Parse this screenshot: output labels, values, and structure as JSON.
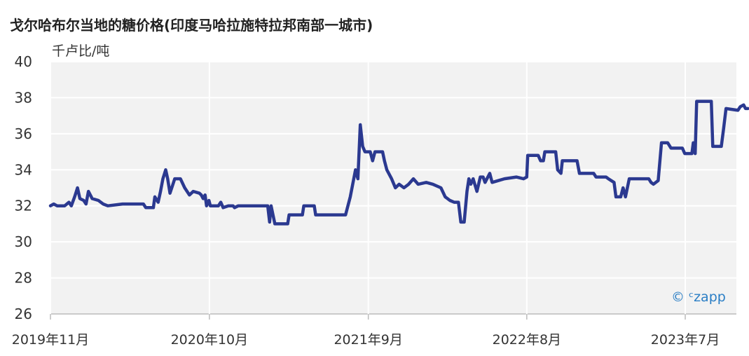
{
  "chart_data": {
    "type": "line",
    "title": "戈尔哈布尔当地的糖价格(印度马哈拉施特拉邦南部一城市)",
    "ylabel": "千卢比/吨",
    "ylim": [
      26,
      40
    ],
    "yticks": [
      26,
      28,
      30,
      32,
      34,
      36,
      38,
      40
    ],
    "xticks": [
      {
        "date": "2019-11-01",
        "label": "2019年11月"
      },
      {
        "date": "2020-10-01",
        "label": "2020年10月"
      },
      {
        "date": "2021-09-01",
        "label": "2021年9月"
      },
      {
        "date": "2022-08-01",
        "label": "2022年8月"
      },
      {
        "date": "2023-07-01",
        "label": "2023年7月"
      }
    ],
    "grid": true,
    "series_color": "#2b3990",
    "series": [
      {
        "points": [
          [
            "2019-11-01",
            32.0
          ],
          [
            "2019-11-08",
            32.1
          ],
          [
            "2019-11-15",
            32.0
          ],
          [
            "2019-12-01",
            32.0
          ],
          [
            "2019-12-10",
            32.2
          ],
          [
            "2019-12-15",
            32.0
          ],
          [
            "2019-12-22",
            32.5
          ],
          [
            "2019-12-28",
            33.0
          ],
          [
            "2020-01-02",
            32.4
          ],
          [
            "2020-01-10",
            32.3
          ],
          [
            "2020-01-15",
            32.1
          ],
          [
            "2020-01-20",
            32.8
          ],
          [
            "2020-01-28",
            32.4
          ],
          [
            "2020-02-10",
            32.3
          ],
          [
            "2020-02-20",
            32.1
          ],
          [
            "2020-03-01",
            32.0
          ],
          [
            "2020-04-01",
            32.1
          ],
          [
            "2020-05-15",
            32.1
          ],
          [
            "2020-05-20",
            31.9
          ],
          [
            "2020-06-05",
            31.9
          ],
          [
            "2020-06-08",
            32.5
          ],
          [
            "2020-06-15",
            32.2
          ],
          [
            "2020-06-20",
            32.8
          ],
          [
            "2020-06-25",
            33.5
          ],
          [
            "2020-07-01",
            34.0
          ],
          [
            "2020-07-05",
            33.5
          ],
          [
            "2020-07-10",
            32.7
          ],
          [
            "2020-07-15",
            33.1
          ],
          [
            "2020-07-20",
            33.5
          ],
          [
            "2020-08-01",
            33.5
          ],
          [
            "2020-08-10",
            33.0
          ],
          [
            "2020-08-15",
            32.8
          ],
          [
            "2020-08-20",
            32.6
          ],
          [
            "2020-08-28",
            32.8
          ],
          [
            "2020-09-10",
            32.7
          ],
          [
            "2020-09-14",
            32.6
          ],
          [
            "2020-09-18",
            32.4
          ],
          [
            "2020-09-22",
            32.6
          ],
          [
            "2020-09-25",
            32.0
          ],
          [
            "2020-09-30",
            32.3
          ],
          [
            "2020-10-03",
            32.0
          ],
          [
            "2020-10-20",
            32.0
          ],
          [
            "2020-10-25",
            32.2
          ],
          [
            "2020-10-30",
            31.9
          ],
          [
            "2020-11-10",
            32.0
          ],
          [
            "2020-11-20",
            32.0
          ],
          [
            "2020-11-23",
            31.9
          ],
          [
            "2020-12-01",
            32.0
          ],
          [
            "2021-01-15",
            32.0
          ],
          [
            "2021-02-01",
            32.0
          ],
          [
            "2021-02-05",
            31.1
          ],
          [
            "2021-02-08",
            32.0
          ],
          [
            "2021-02-12",
            31.5
          ],
          [
            "2021-02-16",
            31.0
          ],
          [
            "2021-03-15",
            31.0
          ],
          [
            "2021-03-18",
            31.5
          ],
          [
            "2021-04-15",
            31.5
          ],
          [
            "2021-04-18",
            32.0
          ],
          [
            "2021-05-10",
            32.0
          ],
          [
            "2021-05-13",
            31.5
          ],
          [
            "2021-07-15",
            31.5
          ],
          [
            "2021-07-25",
            32.5
          ],
          [
            "2021-08-05",
            34.0
          ],
          [
            "2021-08-10",
            33.5
          ],
          [
            "2021-08-15",
            36.5
          ],
          [
            "2021-08-20",
            35.3
          ],
          [
            "2021-08-25",
            35.0
          ],
          [
            "2021-09-05",
            35.0
          ],
          [
            "2021-09-10",
            34.5
          ],
          [
            "2021-09-15",
            35.0
          ],
          [
            "2021-10-01",
            35.0
          ],
          [
            "2021-10-05",
            34.5
          ],
          [
            "2021-10-10",
            34.0
          ],
          [
            "2021-10-20",
            33.5
          ],
          [
            "2021-10-28",
            33.0
          ],
          [
            "2021-11-05",
            33.2
          ],
          [
            "2021-11-15",
            33.0
          ],
          [
            "2021-11-25",
            33.2
          ],
          [
            "2021-12-05",
            33.5
          ],
          [
            "2021-12-15",
            33.2
          ],
          [
            "2022-01-01",
            33.3
          ],
          [
            "2022-01-15",
            33.2
          ],
          [
            "2022-02-01",
            33.0
          ],
          [
            "2022-02-10",
            32.5
          ],
          [
            "2022-02-20",
            32.3
          ],
          [
            "2022-03-01",
            32.2
          ],
          [
            "2022-03-10",
            32.2
          ],
          [
            "2022-03-15",
            31.1
          ],
          [
            "2022-03-22",
            31.1
          ],
          [
            "2022-03-28",
            32.8
          ],
          [
            "2022-04-01",
            33.5
          ],
          [
            "2022-04-05",
            33.2
          ],
          [
            "2022-04-10",
            33.5
          ],
          [
            "2022-04-18",
            32.8
          ],
          [
            "2022-04-25",
            33.6
          ],
          [
            "2022-05-01",
            33.6
          ],
          [
            "2022-05-05",
            33.3
          ],
          [
            "2022-05-15",
            33.8
          ],
          [
            "2022-05-20",
            33.3
          ],
          [
            "2022-06-15",
            33.5
          ],
          [
            "2022-07-10",
            33.6
          ],
          [
            "2022-07-25",
            33.5
          ],
          [
            "2022-08-01",
            33.6
          ],
          [
            "2022-08-03",
            34.8
          ],
          [
            "2022-08-25",
            34.8
          ],
          [
            "2022-08-30",
            34.5
          ],
          [
            "2022-09-05",
            34.5
          ],
          [
            "2022-09-08",
            35.0
          ],
          [
            "2022-10-01",
            35.0
          ],
          [
            "2022-10-05",
            34.0
          ],
          [
            "2022-10-12",
            33.8
          ],
          [
            "2022-10-15",
            34.5
          ],
          [
            "2022-11-15",
            34.5
          ],
          [
            "2022-11-20",
            33.8
          ],
          [
            "2022-12-20",
            33.8
          ],
          [
            "2022-12-25",
            33.6
          ],
          [
            "2023-01-15",
            33.6
          ],
          [
            "2023-01-20",
            33.5
          ],
          [
            "2023-02-01",
            33.3
          ],
          [
            "2023-02-05",
            32.5
          ],
          [
            "2023-02-15",
            32.5
          ],
          [
            "2023-02-20",
            33.0
          ],
          [
            "2023-02-25",
            32.5
          ],
          [
            "2023-03-05",
            33.5
          ],
          [
            "2023-04-15",
            33.5
          ],
          [
            "2023-04-20",
            33.3
          ],
          [
            "2023-04-25",
            33.2
          ],
          [
            "2023-05-05",
            33.4
          ],
          [
            "2023-05-12",
            35.5
          ],
          [
            "2023-05-25",
            35.5
          ],
          [
            "2023-06-01",
            35.2
          ],
          [
            "2023-06-25",
            35.2
          ],
          [
            "2023-06-30",
            34.9
          ],
          [
            "2023-07-15",
            34.9
          ],
          [
            "2023-07-18",
            35.5
          ],
          [
            "2023-07-22",
            34.9
          ],
          [
            "2023-07-25",
            37.8
          ],
          [
            "2023-08-25",
            37.8
          ],
          [
            "2023-08-28",
            35.3
          ],
          [
            "2023-09-15",
            35.3
          ],
          [
            "2023-09-20",
            36.3
          ],
          [
            "2023-09-25",
            37.4
          ],
          [
            "2023-10-20",
            37.3
          ],
          [
            "2023-10-25",
            37.5
          ],
          [
            "2023-11-01",
            37.6
          ],
          [
            "2023-11-05",
            37.4
          ],
          [
            "2023-11-10",
            37.4
          ]
        ]
      }
    ]
  },
  "watermark": "© ᶜzapp"
}
